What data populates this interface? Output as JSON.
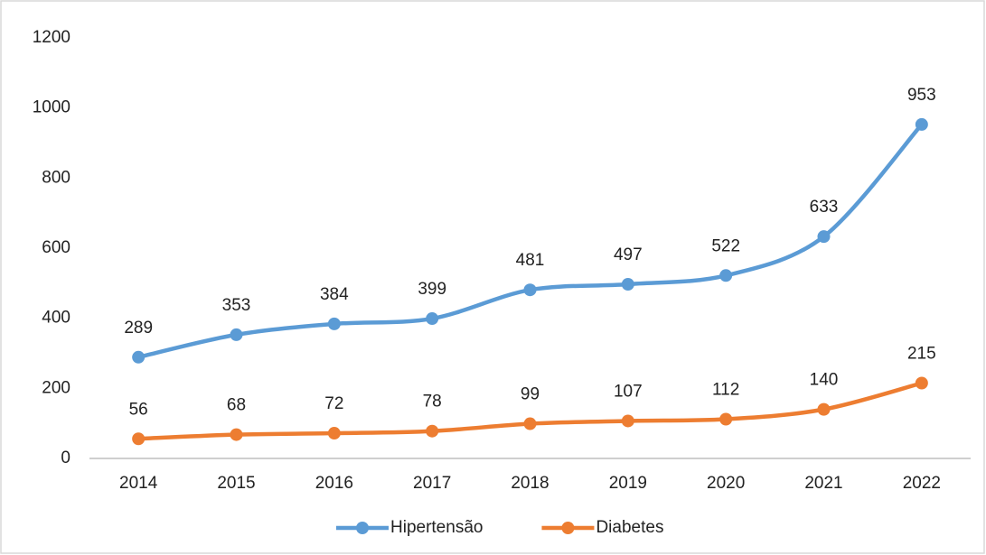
{
  "chart_data": {
    "type": "line",
    "categories": [
      "2014",
      "2015",
      "2016",
      "2017",
      "2018",
      "2019",
      "2020",
      "2021",
      "2022"
    ],
    "series": [
      {
        "name": "Hipertensão",
        "color": "#5b9bd5",
        "values": [
          289,
          353,
          384,
          399,
          481,
          497,
          522,
          633,
          953
        ]
      },
      {
        "name": "Diabetes",
        "color": "#ed7d31",
        "values": [
          56,
          68,
          72,
          78,
          99,
          107,
          112,
          140,
          215
        ]
      }
    ],
    "ylim": [
      0,
      1200
    ],
    "yticks": [
      0,
      200,
      400,
      600,
      800,
      1000,
      1200
    ],
    "grid": false,
    "legend": "bottom"
  }
}
